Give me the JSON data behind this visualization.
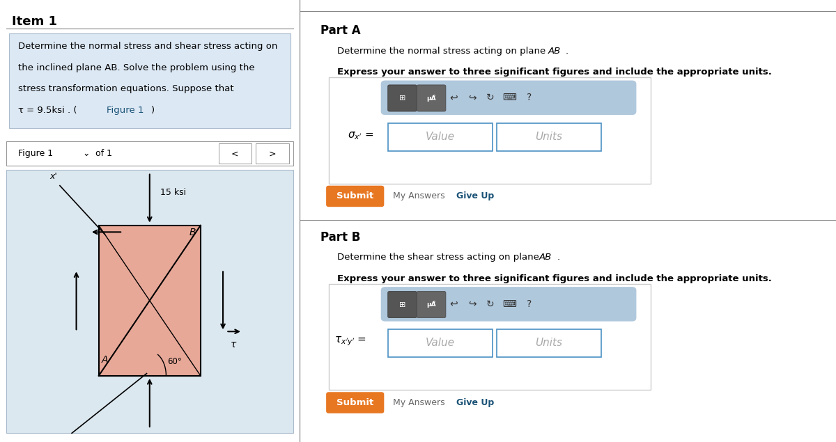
{
  "bg_color": "#ffffff",
  "left_panel_bg": "#f0f4f8",
  "item_title": "Item 1",
  "problem_text_lines": [
    "Determine the normal stress and shear stress acting on",
    "the inclined plane AB. Solve the problem using the",
    "stress transformation equations. Suppose that",
    "τ = 9.5ksi . (Figure 1)"
  ],
  "fig_area_bg": "#dce8f0",
  "square_color": "#e8a898",
  "stress_label": "15 ksi",
  "angle_label": "60°",
  "part_a_title": "Part A",
  "part_a_desc": "Determine the normal stress acting on plane ",
  "part_a_desc_italic": "AB",
  "part_a_desc_end": ".",
  "part_a_bold": "Express your answer to three significant figures and include the appropriate units.",
  "part_b_title": "Part B",
  "part_b_desc": "Determine the shear stress acting on plane ",
  "part_b_desc_italic": "AB",
  "part_b_desc_end": ".",
  "part_b_bold": "Express your answer to three significant figures and include the appropriate units.",
  "submit_color": "#e87722",
  "submit_text": "Submit",
  "my_answers_text": "My Answers",
  "give_up_text": "Give Up",
  "give_up_color": "#1a5276",
  "toolbar_bg": "#b0c8dc",
  "input_border": "#4a90c4",
  "value_placeholder": "Value",
  "units_placeholder": "Units",
  "divider_color": "#888888",
  "figure1_link_color": "#1a5276"
}
